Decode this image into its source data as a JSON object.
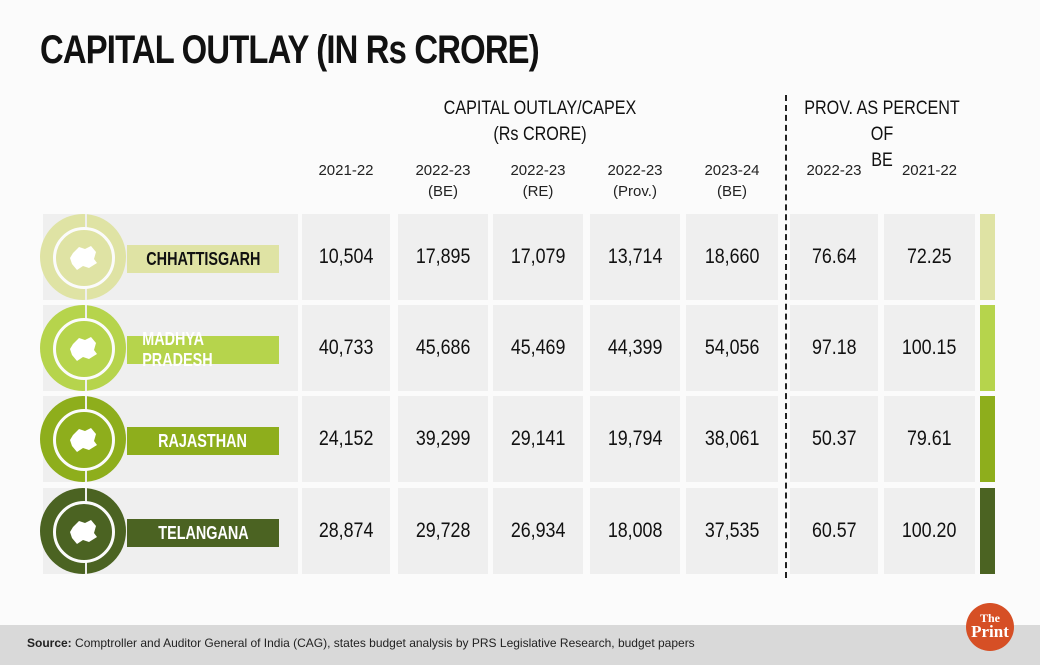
{
  "title": "CAPITAL OUTLAY (IN Rs CRORE)",
  "group_header": [
    "CAPITAL OUTLAY/CAPEX",
    "(Rs CRORE)"
  ],
  "prov_header": [
    "PROV. AS PERCENT OF",
    "BE"
  ],
  "columns": [
    [
      "2021-22",
      ""
    ],
    [
      "2022-23",
      "(BE)"
    ],
    [
      "2022-23",
      "(RE)"
    ],
    [
      "2022-23",
      "(Prov.)"
    ],
    [
      "2023-24",
      "(BE)"
    ],
    [
      "2022-23",
      ""
    ],
    [
      "2021-22",
      ""
    ]
  ],
  "rows": [
    {
      "state": "CHHATTISGARH",
      "icon": "chhattisgarh-map-icon",
      "color": "#dfe3a4",
      "text_color": "#111111",
      "values": [
        "10,504",
        "17,895",
        "17,079",
        "13,714",
        "18,660",
        "76.64",
        "72.25"
      ]
    },
    {
      "state": "MADHYA PRADESH",
      "icon": "madhya-pradesh-map-icon",
      "color": "#b6d44c",
      "text_color": "#ffffff",
      "values": [
        "40,733",
        "45,686",
        "45,469",
        "44,399",
        "54,056",
        "97.18",
        "100.15"
      ]
    },
    {
      "state": "RAJASTHAN",
      "icon": "rajasthan-map-icon",
      "color": "#8eae1c",
      "text_color": "#ffffff",
      "values": [
        "24,152",
        "39,299",
        "29,141",
        "19,794",
        "38,061",
        "50.37",
        "79.61"
      ]
    },
    {
      "state": "TELANGANA",
      "icon": "telangana-map-icon",
      "color": "#4b6322",
      "text_color": "#ffffff",
      "values": [
        "28,874",
        "29,728",
        "26,934",
        "18,008",
        "37,535",
        "60.57",
        "100.20"
      ]
    }
  ],
  "chart_data": {
    "type": "table",
    "title": "CAPITAL OUTLAY (IN Rs CRORE)",
    "headers": [
      "2021-22",
      "2022-23 (BE)",
      "2022-23 (RE)",
      "2022-23 (Prov.)",
      "2023-24 (BE)",
      "Prov. as % of BE 2022-23",
      "Prov. as % of BE 2021-22"
    ],
    "categories": [
      "CHHATTISGARH",
      "MADHYA PRADESH",
      "RAJASTHAN",
      "TELANGANA"
    ]
  },
  "footer": {
    "source_label": "Source:",
    "source_text": " Comptroller and Auditor General of India (CAG), states budget analysis by PRS Legislative Research, budget papers"
  },
  "logo": {
    "line1": "The",
    "line2": "Print"
  }
}
